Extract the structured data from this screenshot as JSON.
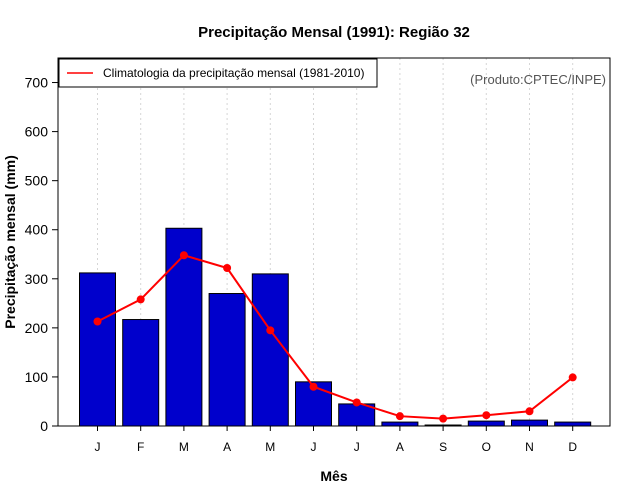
{
  "chart_data": {
    "type": "bar",
    "title": "Precipitação Mensal (1991): Região 32",
    "xlabel": "Mês",
    "ylabel": "Precipitação mensal (mm)",
    "ylim": [
      0,
      750
    ],
    "yticks": [
      0,
      100,
      200,
      300,
      400,
      500,
      600,
      700
    ],
    "grid": "vertical dotted",
    "categories": [
      "J",
      "F",
      "M",
      "A",
      "M",
      "J",
      "J",
      "A",
      "S",
      "O",
      "N",
      "D"
    ],
    "series": [
      {
        "name": "Precipitação mensal (1991)",
        "kind": "bar",
        "color": "#0000CC",
        "values": [
          312,
          217,
          403,
          270,
          310,
          90,
          45,
          8,
          2,
          10,
          12,
          8
        ]
      },
      {
        "name": "Climatologia da precipitação mensal (1981-2010)",
        "kind": "line",
        "color": "#FF0000",
        "values": [
          213,
          258,
          348,
          322,
          195,
          80,
          48,
          20,
          15,
          22,
          30,
          99
        ]
      }
    ],
    "legend": {
      "position": "top-left",
      "entries": [
        "Climatologia da precipitação mensal (1981-2010)"
      ]
    },
    "annotation": "(Produto:CPTEC/INPE)"
  }
}
